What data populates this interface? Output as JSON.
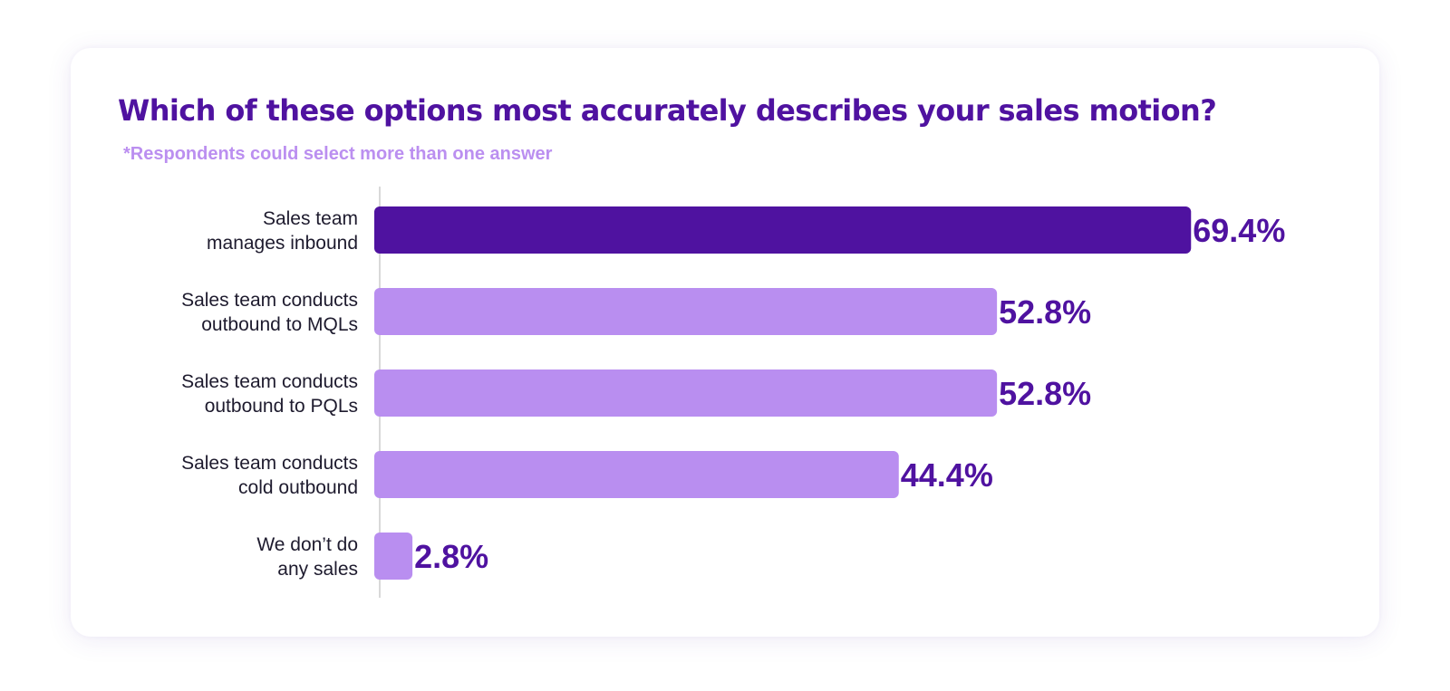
{
  "colors": {
    "highlight": "#4f12a0",
    "bar": "#b98ef0",
    "title": "#4f12a0",
    "subtitle": "#bb8ff0",
    "axis": "#d9d9d9"
  },
  "chart_data": {
    "type": "bar",
    "orientation": "horizontal",
    "title": "Which of these options most accurately describes your sales motion?",
    "subtitle": "*Respondents could select more than one answer",
    "categories": [
      [
        "Sales team",
        "manages inbound"
      ],
      [
        "Sales team conducts",
        "outbound to MQLs"
      ],
      [
        "Sales team conducts",
        "outbound to PQLs"
      ],
      [
        "Sales team conducts",
        "cold outbound"
      ],
      [
        "We don’t do",
        "any sales"
      ]
    ],
    "values": [
      69.4,
      52.8,
      52.8,
      44.4,
      2.8
    ],
    "value_labels": [
      "69.4%",
      "52.8%",
      "52.8%",
      "44.4%",
      "2.8%"
    ],
    "highlight_index": 0,
    "xlim": [
      0,
      100
    ],
    "grid": false,
    "legend": "none"
  }
}
